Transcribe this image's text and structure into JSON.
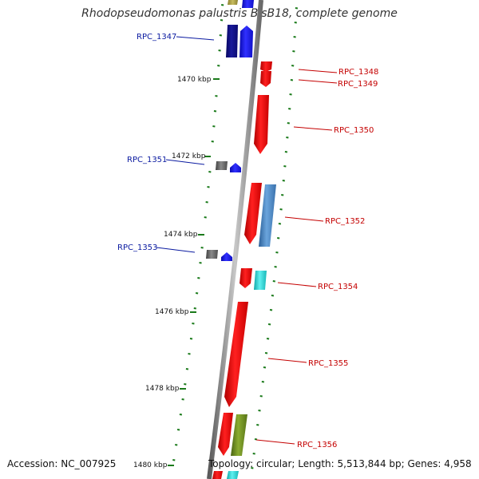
{
  "title": "Rhodopseudomonas palustris BisB18, complete genome",
  "footer": {
    "accession": "Accession: NC_007925",
    "stats": "Topology: circular; Length: 5,513,844 bp; Genes: 4,958"
  },
  "kbp_labels": [
    "1470 kbp",
    "1472 kbp",
    "1474 kbp",
    "1476 kbp",
    "1478 kbp",
    "1480 kbp"
  ],
  "gene_labels": {
    "RPC_1347": "RPC_1347",
    "RPC_1348": "RPC_1348",
    "RPC_1349": "RPC_1349",
    "RPC_1350": "RPC_1350",
    "RPC_1351": "RPC_1351",
    "RPC_1352": "RPC_1352",
    "RPC_1353": "RPC_1353",
    "RPC_1354": "RPC_1354",
    "RPC_1355": "RPC_1355",
    "RPC_1356": "RPC_1356"
  },
  "colors": {
    "backbone": "#8a8a8a",
    "label_blue": "#0a1aa0",
    "label_red": "#c40000",
    "gc_ticks": "#1a7a1a",
    "gene_red": "#ee0000",
    "gene_blue": "#1515dd",
    "gene_navy": "#101080",
    "gene_steel": "#4a86c0",
    "gene_cyan": "#22d4d4",
    "gene_olive": "#6c8c20",
    "gene_gray": "#6a6a6a"
  }
}
